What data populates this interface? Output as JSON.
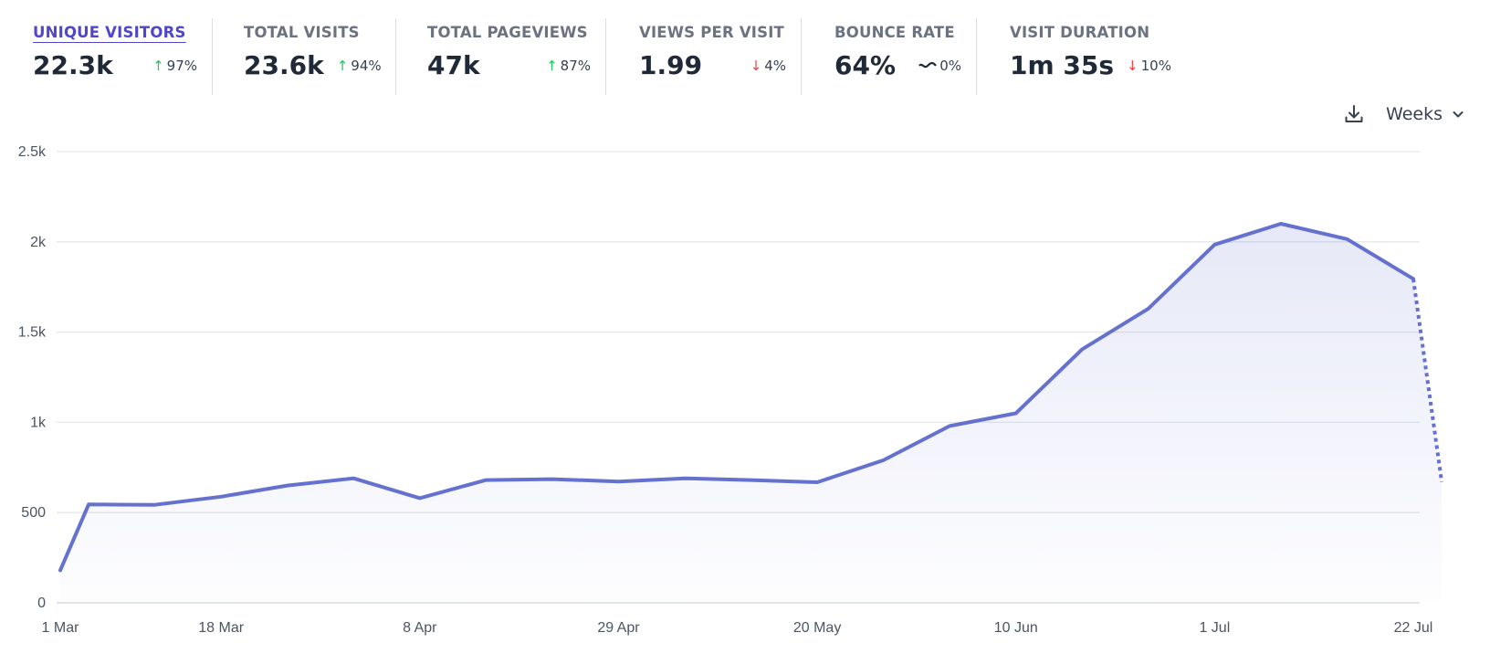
{
  "metrics": [
    {
      "label": "UNIQUE VISITORS",
      "value": "22.3k",
      "change": "97%",
      "direction": "up",
      "active": true
    },
    {
      "label": "TOTAL VISITS",
      "value": "23.6k",
      "change": "94%",
      "direction": "up",
      "active": false
    },
    {
      "label": "TOTAL PAGEVIEWS",
      "value": "47k",
      "change": "87%",
      "direction": "up",
      "active": false
    },
    {
      "label": "VIEWS PER VISIT",
      "value": "1.99",
      "change": "4%",
      "direction": "down",
      "active": false
    },
    {
      "label": "BOUNCE RATE",
      "value": "64%",
      "change": "0%",
      "direction": "flat",
      "active": false
    },
    {
      "label": "VISIT DURATION",
      "value": "1m 35s",
      "change": "10%",
      "direction": "down",
      "active": false
    }
  ],
  "toolbar": {
    "download_icon": "download-icon",
    "interval_label": "Weeks",
    "chevron_icon": "chevron-down-icon"
  },
  "colors": {
    "line": "#6571cf",
    "active_metric": "#4f46c9",
    "up": "#22c55e",
    "down": "#ef4444",
    "grid": "#e5e7eb"
  },
  "chart_data": {
    "type": "area",
    "x": [
      "2024-03-01",
      "2024-03-04",
      "2024-03-11",
      "2024-03-18",
      "2024-03-25",
      "2024-04-01",
      "2024-04-08",
      "2024-04-15",
      "2024-04-22",
      "2024-04-29",
      "2024-05-06",
      "2024-05-13",
      "2024-05-20",
      "2024-05-27",
      "2024-06-03",
      "2024-06-10",
      "2024-06-17",
      "2024-06-24",
      "2024-07-01",
      "2024-07-08",
      "2024-07-15",
      "2024-07-22",
      "2024-07-25"
    ],
    "series": [
      {
        "values": [
          180,
          545,
          543,
          588,
          650,
          690,
          580,
          680,
          685,
          672,
          690,
          680,
          668,
          790,
          980,
          1050,
          1405,
          1630,
          1985,
          2100,
          2015,
          1795,
          670
        ]
      }
    ],
    "incomplete_from_index": 21,
    "x_ticks": [
      "1 Mar",
      "18 Mar",
      "8 Apr",
      "29 Apr",
      "20 May",
      "10 Jun",
      "1 Jul",
      "22 Jul"
    ],
    "x_tick_dates": [
      "2024-03-01",
      "2024-03-18",
      "2024-04-08",
      "2024-04-29",
      "2024-05-20",
      "2024-06-10",
      "2024-07-01",
      "2024-07-22"
    ],
    "y_ticks": [
      0,
      500,
      1000,
      1500,
      2000,
      2500
    ],
    "y_tick_labels": [
      "0",
      "500",
      "1k",
      "1.5k",
      "2k",
      "2.5k"
    ],
    "ylim": [
      0,
      2500
    ],
    "grid": true,
    "legend": "none"
  }
}
